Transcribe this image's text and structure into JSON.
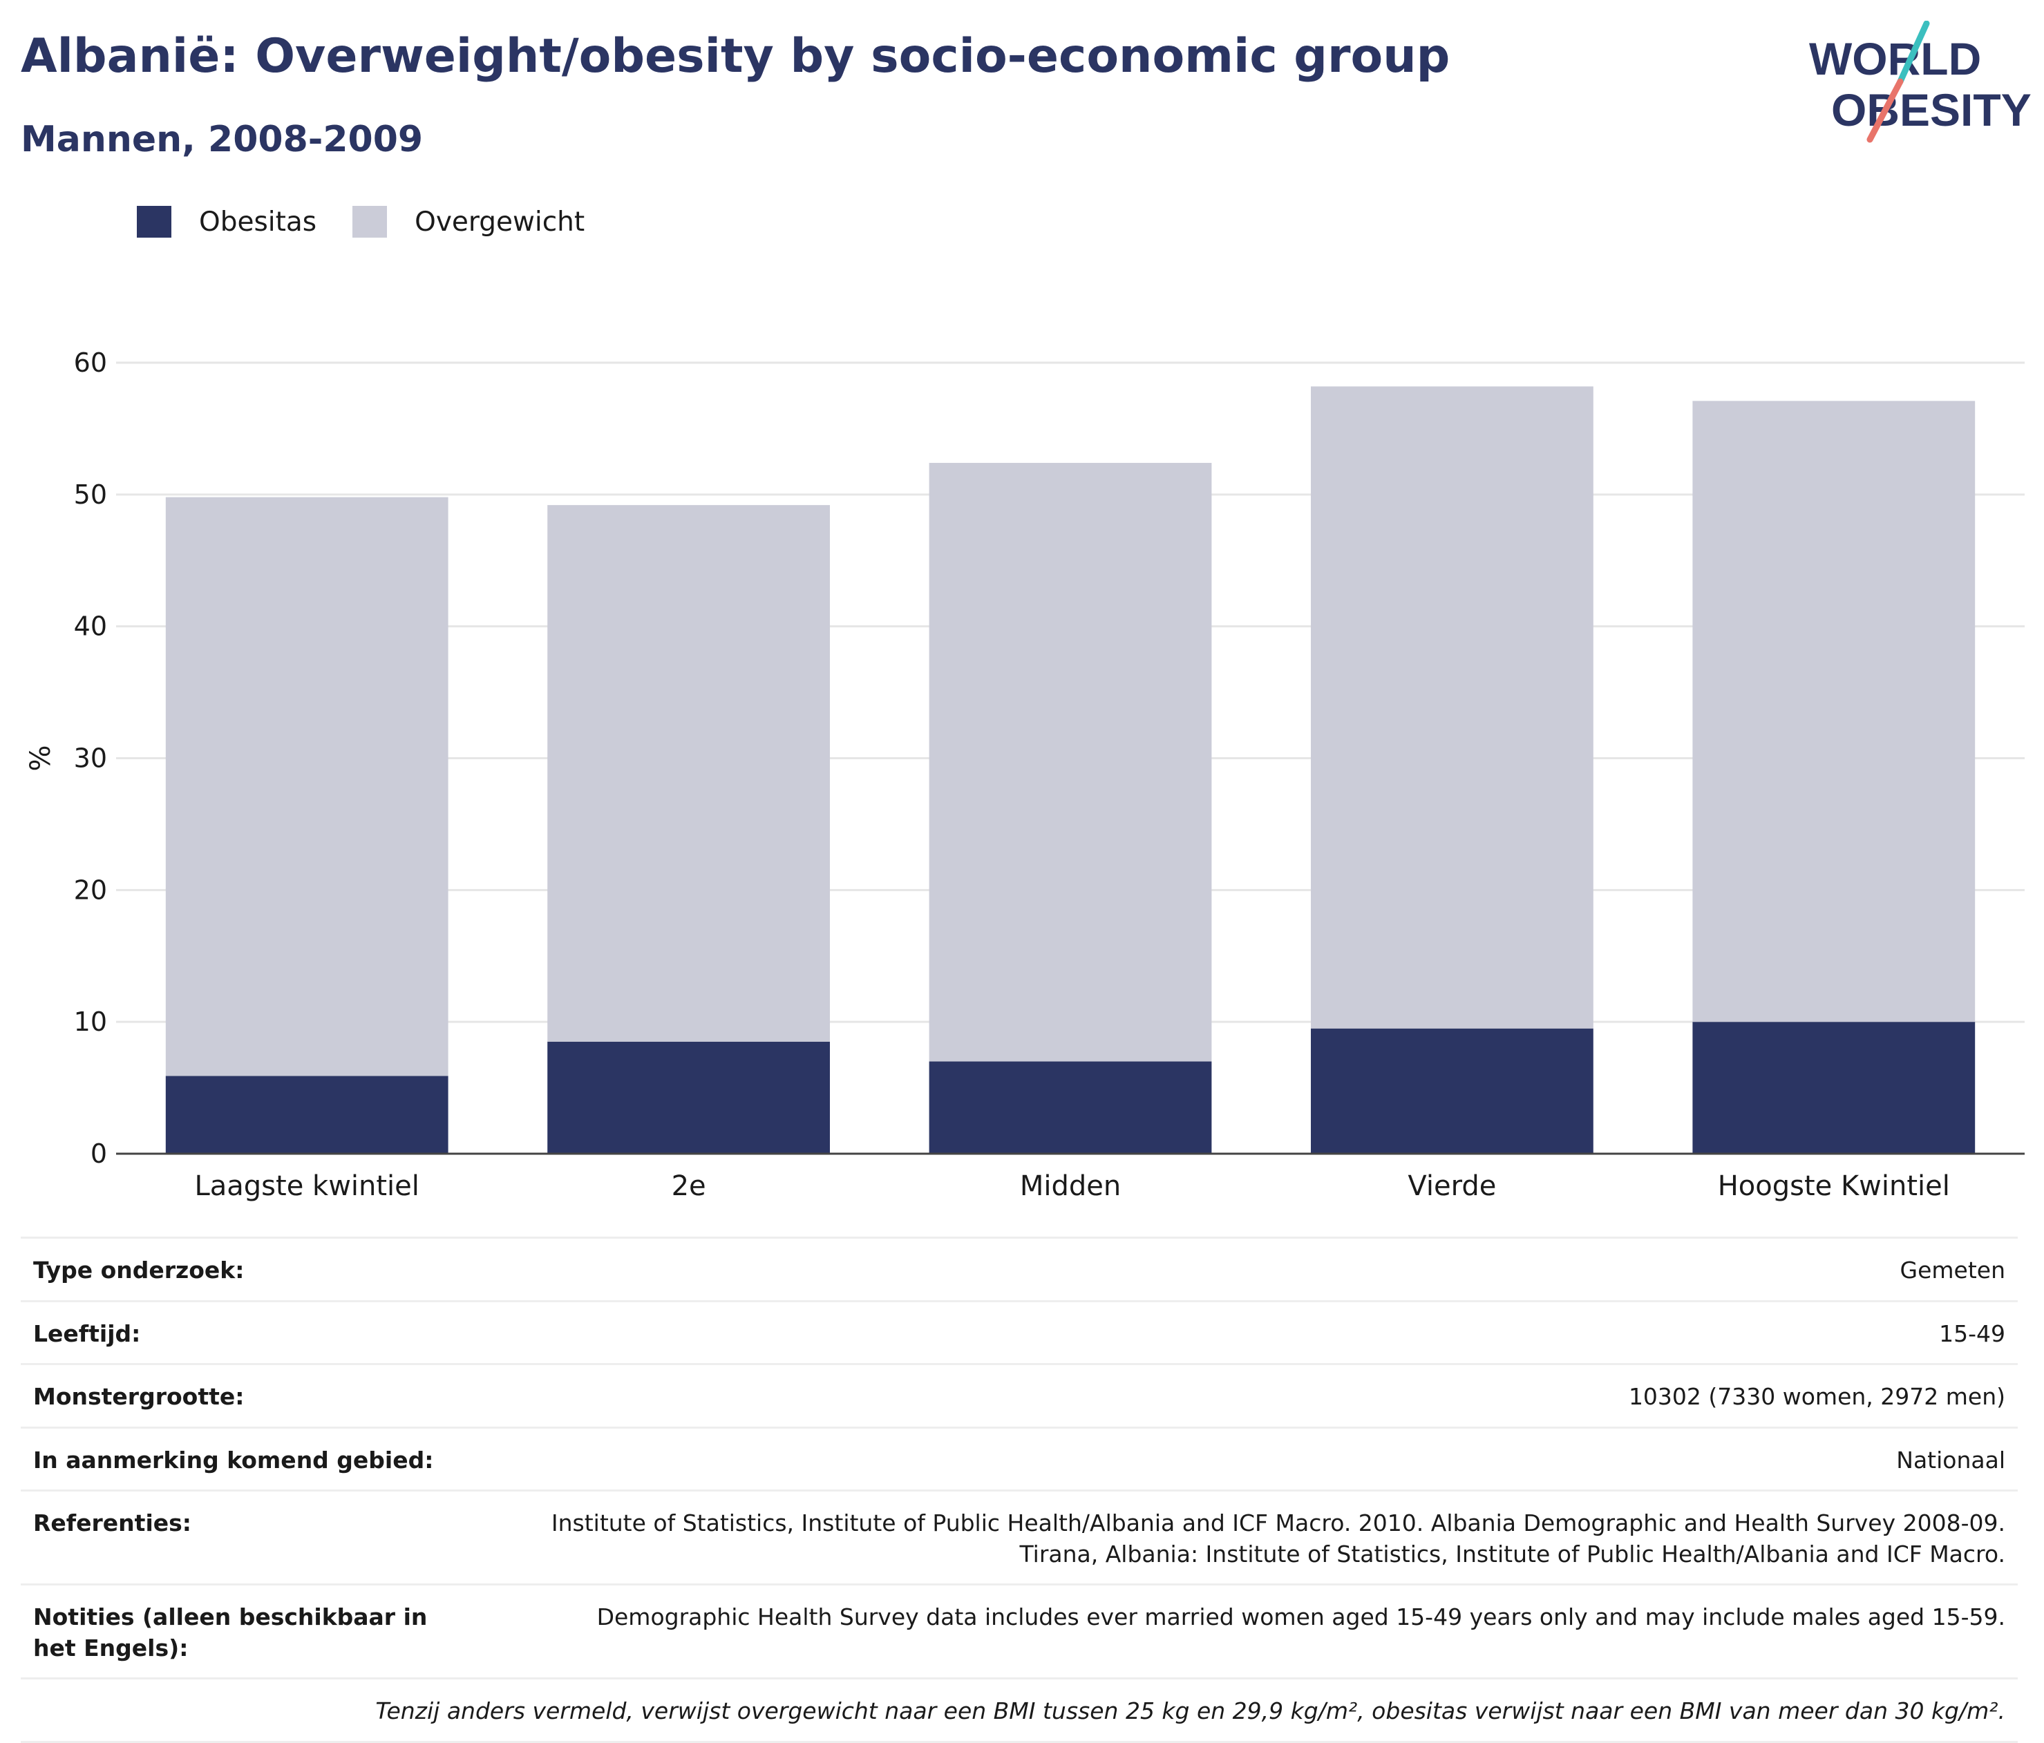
{
  "header": {
    "title": "Albanië: Overweight/obesity by socio-economic group",
    "subtitle": "Mannen, 2008-2009"
  },
  "logo": {
    "line1": "WORLD",
    "line2": "OBESITY"
  },
  "colors": {
    "obesity": "#2b3563",
    "overweight": "#cbccd8",
    "title": "#2b3563"
  },
  "chart_data": {
    "type": "bar",
    "stacked": true,
    "categories": [
      "Laagste kwintiel",
      "2e",
      "Midden",
      "Vierde",
      "Hoogste Kwintiel"
    ],
    "series": [
      {
        "name": "Obesitas",
        "color": "#2b3563",
        "values": [
          5.9,
          8.5,
          7.0,
          9.5,
          10.0
        ]
      },
      {
        "name": "Overgewicht",
        "color": "#cbccd8",
        "values": [
          43.9,
          40.7,
          45.4,
          48.7,
          47.1
        ]
      }
    ],
    "ylabel": "%",
    "ylim": [
      0,
      60
    ],
    "yticks": [
      0,
      10,
      20,
      30,
      40,
      50,
      60
    ],
    "grid": true,
    "legend": "top-left"
  },
  "info": {
    "rows": [
      {
        "label": "Type onderzoek:",
        "value": "Gemeten"
      },
      {
        "label": "Leeftijd:",
        "value": "15-49"
      },
      {
        "label": "Monstergrootte:",
        "value": "10302 (7330 women, 2972 men)"
      },
      {
        "label": "In aanmerking komend gebied:",
        "value": "Nationaal"
      },
      {
        "label": "Referenties:",
        "value": "Institute of Statistics, Institute of Public Health/Albania and ICF Macro. 2010. Albania Demographic and Health Survey 2008-09. Tirana, Albania: Institute of Statistics, Institute of Public Health/Albania and ICF Macro."
      },
      {
        "label": "Notities (alleen beschikbaar in het Engels):",
        "value": "Demographic Health Survey data includes ever married women aged 15-49 years only and may include males aged 15-59."
      }
    ],
    "footnote": "Tenzij anders vermeld, verwijst overgewicht naar een BMI tussen 25 kg en 29,9 kg/m², obesitas verwijst naar een BMI van meer dan 30 kg/m²."
  }
}
